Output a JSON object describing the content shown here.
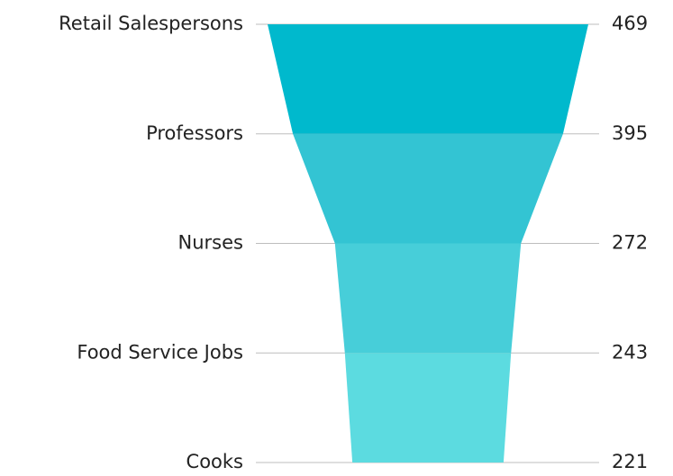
{
  "chart_data": {
    "type": "funnel",
    "categories": [
      "Retail Salespersons",
      "Professors",
      "Nurses",
      "Food Service Jobs",
      "Cooks"
    ],
    "values": [
      469,
      395,
      272,
      243,
      221
    ],
    "colors": [
      "#00b9cd",
      "#33c4d3",
      "#47ced9",
      "#5cdbe0"
    ]
  }
}
